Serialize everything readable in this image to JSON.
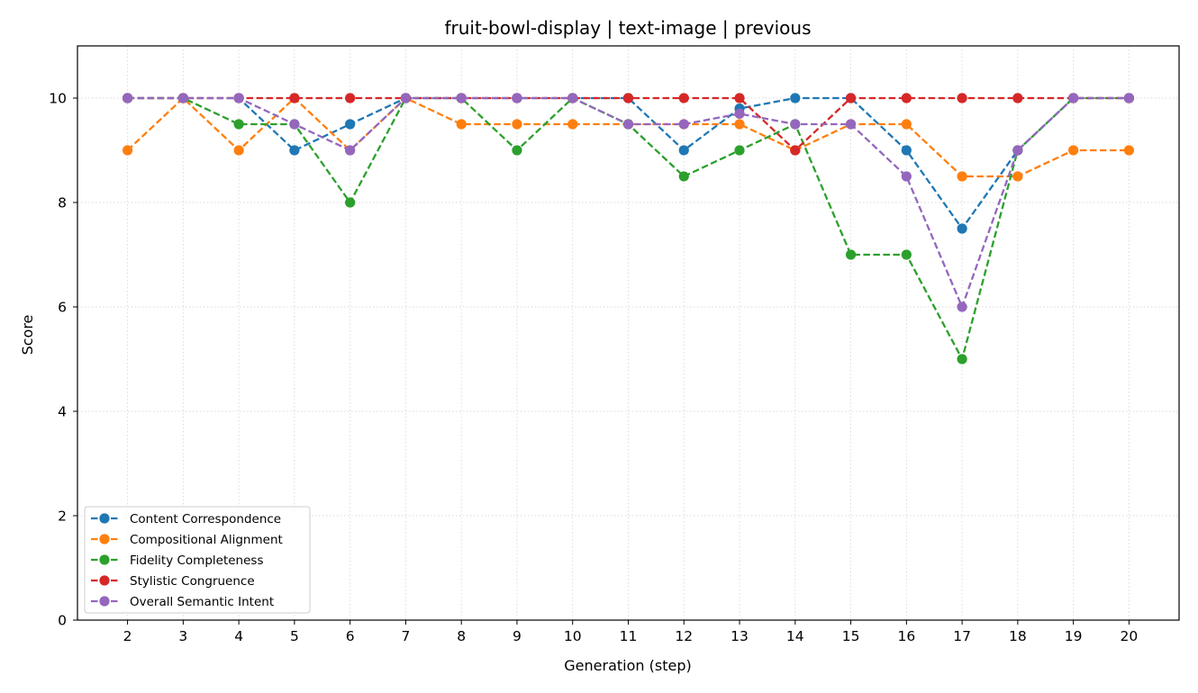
{
  "chart_data": {
    "type": "line",
    "title": "fruit-bowl-display | text-image | previous",
    "xlabel": "Generation (step)",
    "ylabel": "Score",
    "x": [
      2,
      3,
      4,
      5,
      6,
      7,
      8,
      9,
      10,
      11,
      12,
      13,
      14,
      15,
      16,
      17,
      18,
      19,
      20
    ],
    "xlim": [
      1.1,
      20.9
    ],
    "ylim": [
      0,
      11
    ],
    "yticks": [
      0,
      2,
      4,
      6,
      8,
      10
    ],
    "grid": true,
    "legend_position": "lower-left",
    "series": [
      {
        "name": "Content Correspondence",
        "color": "#1f77b4",
        "values": [
          10,
          10,
          10,
          9,
          9.5,
          10,
          10,
          10,
          10,
          10,
          9,
          9.8,
          10,
          10,
          9,
          7.5,
          9,
          10,
          10
        ]
      },
      {
        "name": "Compositional Alignment",
        "color": "#ff7f0e",
        "values": [
          9,
          10,
          9,
          10,
          9,
          10,
          9.5,
          9.5,
          9.5,
          9.5,
          9.5,
          9.5,
          9,
          9.5,
          9.5,
          8.5,
          8.5,
          9,
          9
        ]
      },
      {
        "name": "Fidelity Completeness",
        "color": "#2ca02c",
        "values": [
          10,
          10,
          9.5,
          9.5,
          8,
          10,
          10,
          9,
          10,
          9.5,
          8.5,
          9,
          9.5,
          7,
          7,
          5,
          9,
          10,
          10
        ]
      },
      {
        "name": "Stylistic Congruence",
        "color": "#d62728",
        "values": [
          10,
          10,
          10,
          10,
          10,
          10,
          10,
          10,
          10,
          10,
          10,
          10,
          9,
          10,
          10,
          10,
          10,
          10,
          10
        ]
      },
      {
        "name": "Overall Semantic Intent",
        "color": "#9467bd",
        "values": [
          10,
          10,
          10,
          9.5,
          9,
          10,
          10,
          10,
          10,
          9.5,
          9.5,
          9.7,
          9.5,
          9.5,
          8.5,
          6,
          9,
          10,
          10
        ]
      }
    ]
  }
}
